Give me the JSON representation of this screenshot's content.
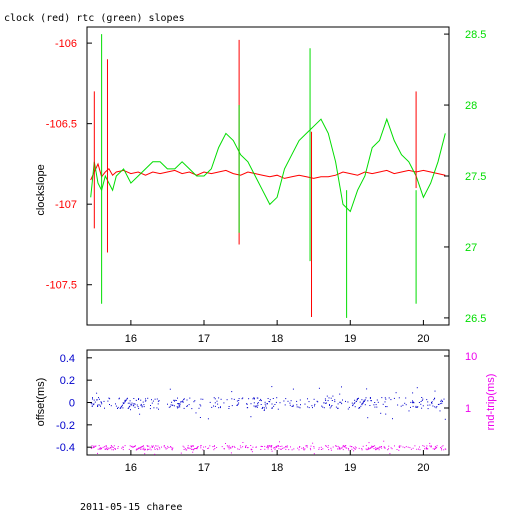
{
  "title": "clock (red) rtc (green) slopes",
  "footer": "2011-05-15 charee",
  "colors": {
    "red": "#ff0000",
    "green": "#00dd00",
    "blue": "#0000cc",
    "magenta": "#ee00ee",
    "axis": "#000000"
  },
  "chart_data": [
    {
      "type": "line",
      "ylabel": "clockslope",
      "y2label": "",
      "xticks": [
        "16",
        "17",
        "18",
        "19",
        "20"
      ],
      "xlim": [
        15.4,
        20.35
      ],
      "ylim": [
        -107.75,
        -105.9
      ],
      "y2lim": [
        26.45,
        28.55
      ],
      "yticks": [
        "-106",
        "-106.5",
        "-107",
        "-107.5"
      ],
      "y2ticks": [
        "28.5",
        "28",
        "27.5",
        "27",
        "26.5"
      ],
      "series": [
        {
          "name": "clock",
          "axis": "left",
          "color": "#ff0000",
          "x": [
            15.45,
            15.5,
            15.55,
            15.6,
            15.65,
            15.7,
            15.75,
            15.8,
            15.9,
            16,
            16.1,
            16.2,
            16.3,
            16.4,
            16.5,
            16.6,
            16.7,
            16.8,
            16.9,
            17,
            17.1,
            17.2,
            17.3,
            17.4,
            17.5,
            17.6,
            17.7,
            17.8,
            17.9,
            18,
            18.1,
            18.2,
            18.3,
            18.4,
            18.5,
            18.6,
            18.7,
            18.8,
            18.9,
            19,
            19.1,
            19.2,
            19.3,
            19.4,
            19.5,
            19.6,
            19.7,
            19.8,
            19.9,
            20,
            20.1,
            20.2,
            20.3
          ],
          "y": [
            -106.85,
            -106.8,
            -106.75,
            -106.83,
            -106.8,
            -106.78,
            -106.82,
            -106.8,
            -106.79,
            -106.81,
            -106.8,
            -106.82,
            -106.8,
            -106.81,
            -106.8,
            -106.79,
            -106.81,
            -106.8,
            -106.82,
            -106.8,
            -106.81,
            -106.8,
            -106.79,
            -106.81,
            -106.82,
            -106.8,
            -106.81,
            -106.82,
            -106.83,
            -106.82,
            -106.84,
            -106.83,
            -106.82,
            -106.83,
            -106.84,
            -106.83,
            -106.83,
            -106.82,
            -106.8,
            -106.81,
            -106.82,
            -106.8,
            -106.81,
            -106.8,
            -106.79,
            -106.81,
            -106.8,
            -106.79,
            -106.8,
            -106.79,
            -106.8,
            -106.81,
            -106.82
          ]
        },
        {
          "name": "rtc",
          "axis": "right",
          "color": "#00dd00",
          "x": [
            15.45,
            15.5,
            15.55,
            15.6,
            15.65,
            15.7,
            15.75,
            15.8,
            15.9,
            16,
            16.1,
            16.2,
            16.3,
            16.4,
            16.5,
            16.6,
            16.7,
            16.8,
            16.9,
            17,
            17.1,
            17.2,
            17.3,
            17.4,
            17.5,
            17.6,
            17.7,
            17.8,
            17.9,
            18,
            18.1,
            18.2,
            18.3,
            18.4,
            18.5,
            18.6,
            18.7,
            18.8,
            18.9,
            19,
            19.1,
            19.2,
            19.3,
            19.4,
            19.5,
            19.6,
            19.7,
            19.8,
            19.9,
            20,
            20.1,
            20.2,
            20.3
          ],
          "y": [
            27.35,
            27.6,
            27.45,
            27.4,
            27.5,
            27.45,
            27.4,
            27.5,
            27.55,
            27.45,
            27.5,
            27.55,
            27.6,
            27.6,
            27.55,
            27.55,
            27.6,
            27.55,
            27.5,
            27.5,
            27.55,
            27.7,
            27.8,
            27.75,
            27.65,
            27.6,
            27.5,
            27.4,
            27.3,
            27.35,
            27.55,
            27.65,
            27.75,
            27.8,
            27.85,
            27.9,
            27.8,
            27.6,
            27.3,
            27.25,
            27.4,
            27.5,
            27.7,
            27.75,
            27.9,
            27.75,
            27.65,
            27.6,
            27.5,
            27.35,
            27.45,
            27.6,
            27.8
          ]
        }
      ]
    },
    {
      "type": "scatter",
      "ylabel": "offset(ms)",
      "y2label": "rnd-trip(ms)",
      "xticks": [
        "16",
        "17",
        "18",
        "19",
        "20"
      ],
      "xlim": [
        15.4,
        20.35
      ],
      "ylim": [
        -0.47,
        0.47
      ],
      "yticks": [
        "0.4",
        "0.2",
        "0",
        "-0.2",
        "-0.4"
      ],
      "y2ticks": [
        "10",
        "1"
      ],
      "y2scale": "log",
      "series": [
        {
          "name": "offset",
          "color": "#0000cc",
          "x_range": [
            15.45,
            20.3
          ],
          "y_center": 0.0,
          "y_spread": 0.05
        },
        {
          "name": "rnd-trip",
          "color": "#ee00ee",
          "x_range": [
            15.45,
            20.3
          ],
          "y_center": -0.4,
          "y_spread": 0.02
        }
      ]
    }
  ]
}
